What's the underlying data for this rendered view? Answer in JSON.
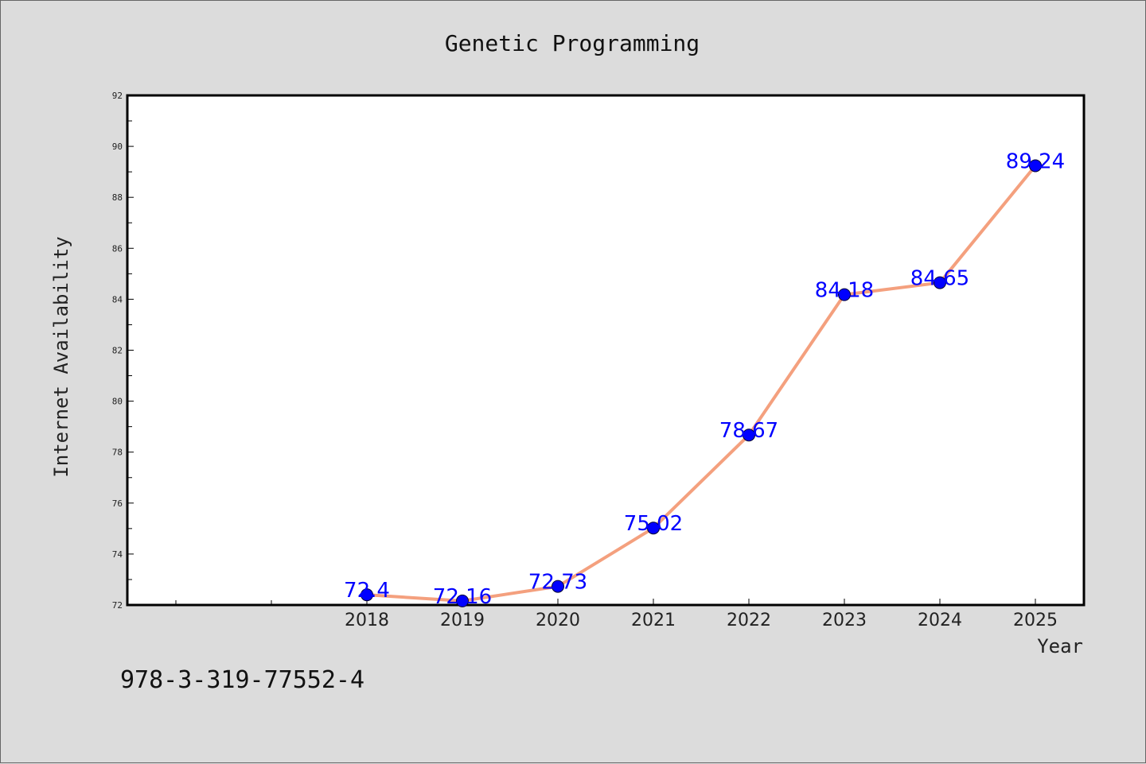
{
  "chart_data": {
    "type": "line",
    "title": "Genetic Programming",
    "xlabel": "Year",
    "ylabel": "Internet Availability",
    "categories": [
      "2018",
      "2019",
      "2020",
      "2021",
      "2022",
      "2023",
      "2024",
      "2025"
    ],
    "values": [
      72.4,
      72.16,
      72.73,
      75.02,
      78.67,
      84.18,
      84.65,
      89.24
    ],
    "value_labels": [
      "72.4",
      "72.16",
      "72.73",
      "75.02",
      "78.67",
      "84.18",
      "84.65",
      "89.24"
    ],
    "ylim": [
      72,
      92
    ],
    "yticks": [
      "72",
      "74",
      "76",
      "78",
      "80",
      "82",
      "84",
      "86",
      "88",
      "90",
      "92"
    ],
    "grid": false,
    "line_color": "#f4a07e",
    "marker_color": "#0000ff",
    "label_color": "#0000ff"
  },
  "footnote": "978-3-319-77552-4"
}
